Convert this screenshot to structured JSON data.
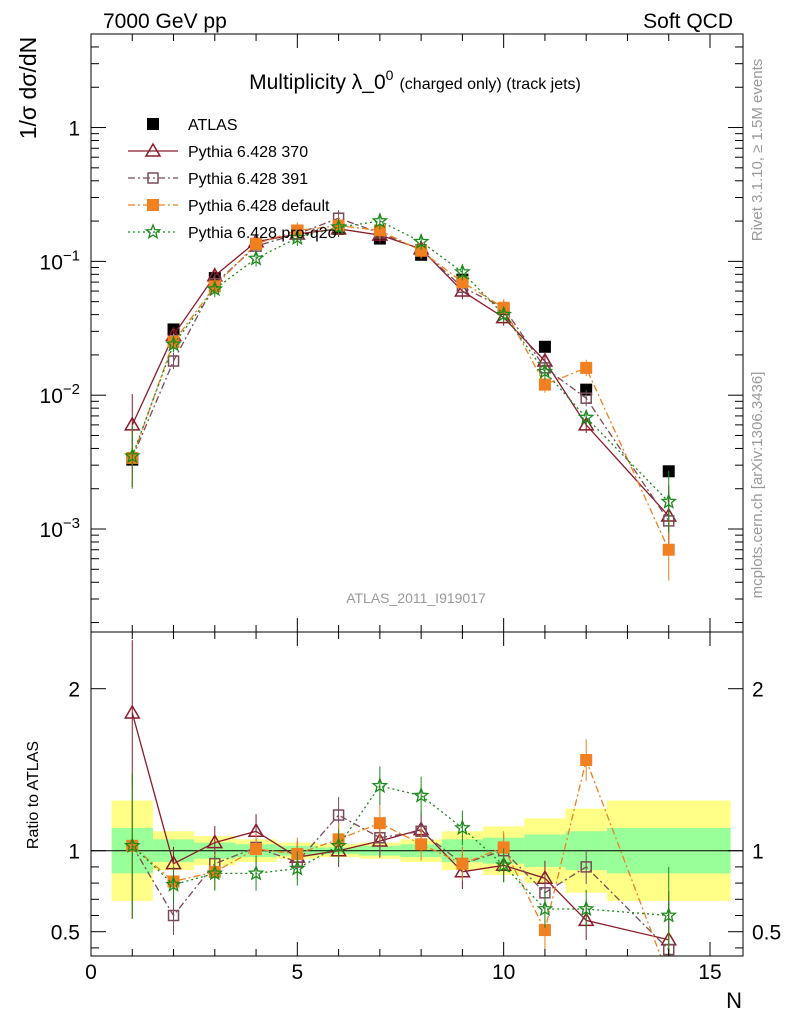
{
  "header": {
    "left": "7000 GeV pp",
    "right": "Soft QCD"
  },
  "side": {
    "rivet": "Rivet 3.1.10, ≥ 1.5M events",
    "mcplots": "mcplots.cern.ch [arXiv:1306.3436]"
  },
  "watermark": "ATLAS_2011_I919017",
  "chart_data": [
    {
      "type": "line",
      "panel": "main",
      "title": "Multiplicity λ_0⁰ (charged only) (track jets)",
      "title_main": "Multiplicity λ_0",
      "title_sup": "0",
      "title_sub": "(charged only) (track jets)",
      "ylabel": "1/σ dσ/dN",
      "xlabel": "N",
      "yscale": "log",
      "xlim": [
        0,
        15.8
      ],
      "ylim": [
        0.00017,
        5
      ],
      "x_ticks": [
        "0",
        "5",
        "10",
        "15"
      ],
      "y_ticks": [
        "10⁻³",
        "10⁻²",
        "10⁻¹",
        "1"
      ],
      "legend_position": "top-left",
      "series": [
        {
          "name": "ATLAS",
          "color": "#000000",
          "marker": "square-filled",
          "x": [
            1,
            2,
            3,
            4,
            5,
            6,
            7,
            8,
            9,
            10,
            11,
            12,
            14
          ],
          "y": [
            0.0033,
            0.031,
            0.075,
            0.135,
            0.17,
            0.175,
            0.148,
            0.112,
            0.073,
            0.044,
            0.023,
            0.011,
            0.0027
          ]
        },
        {
          "name": "Pythia 6.428 370",
          "color": "#8b1a2b",
          "marker": "triangle-open",
          "line": "solid",
          "x": [
            1,
            2,
            3,
            4,
            5,
            6,
            7,
            8,
            9,
            10,
            11,
            12,
            14
          ],
          "y": [
            0.006,
            0.028,
            0.078,
            0.14,
            0.16,
            0.175,
            0.157,
            0.124,
            0.06,
            0.038,
            0.018,
            0.006,
            0.00125
          ]
        },
        {
          "name": "Pythia 6.428 391",
          "color": "#7b4a5a",
          "marker": "square-open",
          "line": "dashdot",
          "x": [
            1,
            2,
            3,
            4,
            5,
            6,
            7,
            8,
            9,
            10,
            11,
            12,
            14
          ],
          "y": [
            0.0034,
            0.018,
            0.068,
            0.13,
            0.16,
            0.21,
            0.163,
            0.122,
            0.064,
            0.045,
            0.016,
            0.0095,
            0.00115
          ]
        },
        {
          "name": "Pythia 6.428 default",
          "color": "#f08020",
          "marker": "square-filled",
          "line": "dashdot",
          "x": [
            1,
            2,
            3,
            4,
            5,
            6,
            7,
            8,
            9,
            10,
            11,
            12,
            14
          ],
          "y": [
            0.0034,
            0.025,
            0.065,
            0.135,
            0.17,
            0.185,
            0.17,
            0.12,
            0.07,
            0.045,
            0.012,
            0.016,
            0.0007
          ]
        },
        {
          "name": "Pythia 6.428 pro-q2o",
          "color": "#1a8a1a",
          "marker": "star",
          "line": "dotted",
          "x": [
            1,
            2,
            3,
            4,
            5,
            6,
            7,
            8,
            9,
            10,
            11,
            12,
            14
          ],
          "y": [
            0.0035,
            0.024,
            0.062,
            0.105,
            0.15,
            0.18,
            0.2,
            0.14,
            0.083,
            0.04,
            0.015,
            0.0068,
            0.0016
          ]
        }
      ]
    },
    {
      "type": "line",
      "panel": "ratio",
      "ylabel": "Ratio to ATLAS",
      "xlabel": "N",
      "xlim": [
        0,
        15.8
      ],
      "ylim": [
        0.35,
        2.35
      ],
      "x_ticks": [
        "0",
        "5",
        "10",
        "15"
      ],
      "y_ticks": [
        "0.5",
        "1",
        "2"
      ],
      "bands": {
        "edges": [
          0.5,
          1.5,
          2.5,
          3.5,
          4.5,
          5.5,
          6.5,
          7.5,
          8.5,
          9.5,
          10.5,
          11.5,
          12.5,
          15.5
        ],
        "stat_low": [
          0.86,
          0.93,
          0.95,
          0.96,
          0.97,
          0.98,
          0.97,
          0.96,
          0.93,
          0.92,
          0.9,
          0.88,
          0.86
        ],
        "stat_high": [
          1.14,
          1.07,
          1.05,
          1.04,
          1.03,
          1.02,
          1.03,
          1.04,
          1.07,
          1.08,
          1.1,
          1.12,
          1.14
        ],
        "syst_low": [
          0.69,
          0.88,
          0.91,
          0.93,
          0.95,
          0.96,
          0.95,
          0.93,
          0.88,
          0.85,
          0.8,
          0.74,
          0.69
        ],
        "syst_high": [
          1.31,
          1.12,
          1.09,
          1.07,
          1.05,
          1.04,
          1.05,
          1.07,
          1.12,
          1.15,
          1.2,
          1.26,
          1.31
        ],
        "stat_color": "#99ff99",
        "syst_color": "#ffff88"
      },
      "series": [
        {
          "name": "Pythia 6.428 370",
          "x": [
            1,
            2,
            3,
            4,
            5,
            6,
            7,
            8,
            9,
            10,
            11,
            12,
            14
          ],
          "y": [
            1.85,
            0.92,
            1.05,
            1.12,
            0.96,
            1.0,
            1.06,
            1.13,
            0.87,
            0.91,
            0.83,
            0.57,
            0.45
          ]
        },
        {
          "name": "Pythia 6.428 391",
          "x": [
            1,
            2,
            3,
            4,
            5,
            6,
            7,
            8,
            9,
            10,
            11,
            12,
            14
          ],
          "y": [
            1.03,
            0.6,
            0.92,
            1.02,
            0.93,
            1.22,
            1.08,
            1.12,
            0.92,
            1.0,
            0.74,
            0.9,
            0.39
          ]
        },
        {
          "name": "Pythia 6.428 default",
          "x": [
            1,
            2,
            3,
            4,
            5,
            6,
            7,
            8,
            9,
            10,
            11,
            12,
            14
          ],
          "y": [
            1.03,
            0.81,
            0.87,
            1.01,
            0.98,
            1.07,
            1.17,
            1.04,
            0.92,
            1.02,
            0.51,
            1.56,
            0.22
          ]
        },
        {
          "name": "Pythia 6.428 pro-q2o",
          "x": [
            1,
            2,
            3,
            4,
            5,
            6,
            7,
            8,
            9,
            10,
            11,
            12,
            14
          ],
          "y": [
            1.03,
            0.79,
            0.86,
            0.86,
            0.89,
            1.03,
            1.4,
            1.34,
            1.14,
            0.91,
            0.64,
            0.64,
            0.6
          ]
        }
      ]
    }
  ]
}
